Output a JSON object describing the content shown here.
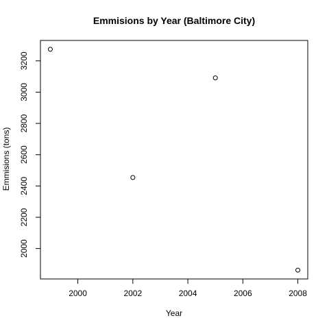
{
  "chart_data": {
    "type": "scatter",
    "title": "Emmisions by Year (Baltimore City)",
    "xlabel": "Year",
    "ylabel": "Emmisions (tons)",
    "xlim": [
      1999,
      2008
    ],
    "ylim": [
      1862,
      3274
    ],
    "x_ticks": [
      2000,
      2002,
      2004,
      2006,
      2008
    ],
    "y_ticks": [
      2000,
      2200,
      2400,
      2600,
      2800,
      3000,
      3200
    ],
    "points": [
      {
        "x": 1999,
        "y": 3274
      },
      {
        "x": 2002,
        "y": 2454
      },
      {
        "x": 2005,
        "y": 3091
      },
      {
        "x": 2008,
        "y": 1862
      }
    ],
    "grid": false,
    "marker": "open-circle",
    "colors": {
      "marker": "#000000",
      "axis": "#000000",
      "background": "#ffffff"
    }
  }
}
